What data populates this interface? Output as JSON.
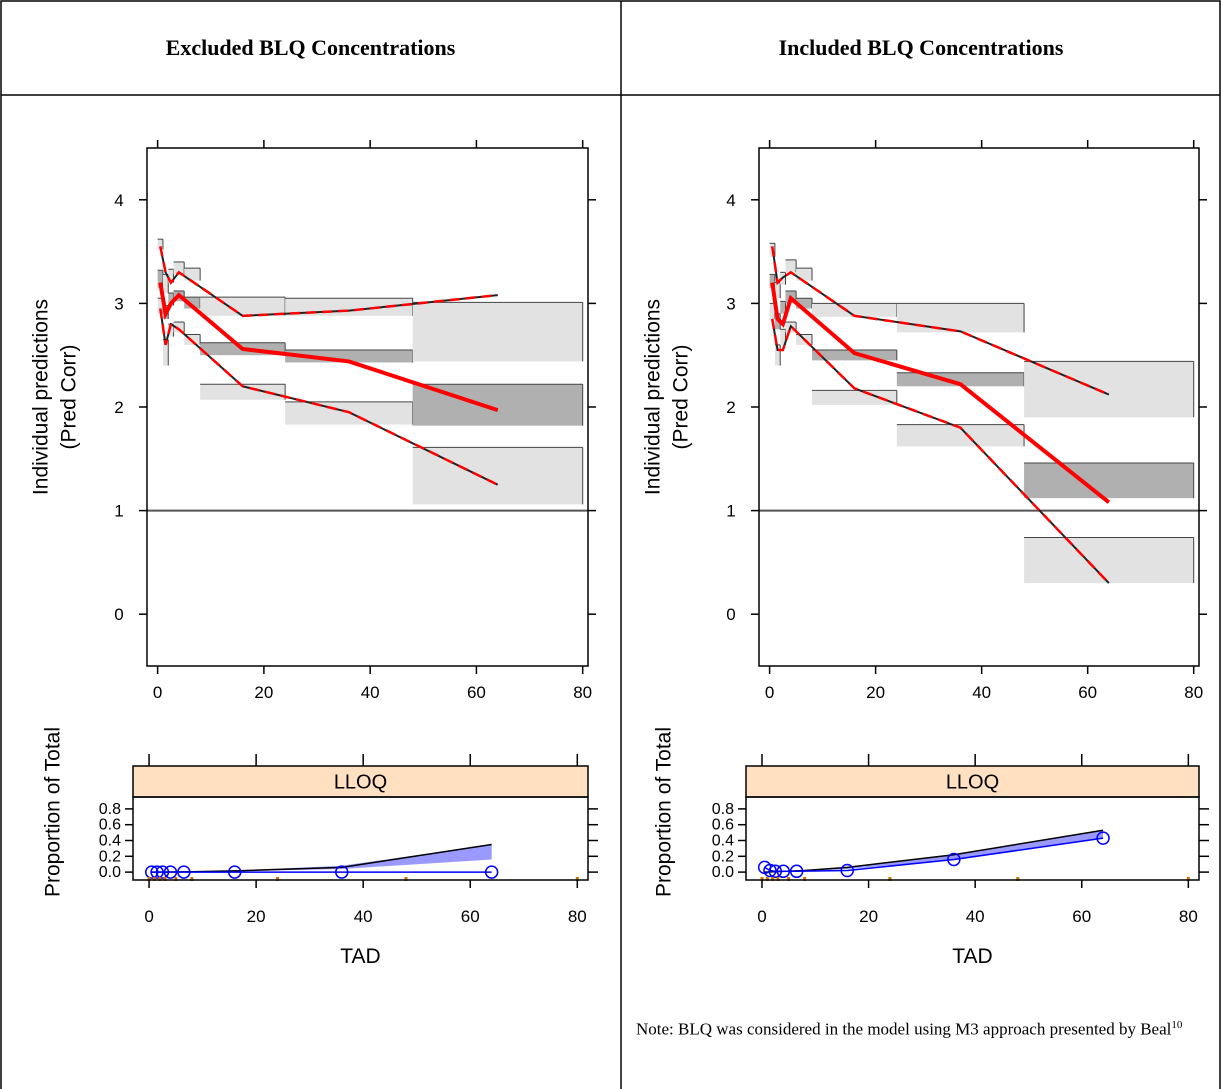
{
  "headers": {
    "left": "Excluded BLQ Concentrations",
    "right": "Included BLQ Concentrations"
  },
  "note": {
    "text": "Note: BLQ was considered in the model using M3 approach presented by Beal",
    "ref": "10"
  },
  "colors": {
    "observed": "#ff0000",
    "pi_dark": "#b0b0b0",
    "pi_light": "#e2e2e2",
    "sim_band": "#9999ff",
    "obs_prop": "#0000ff",
    "strip": "#ffe0c0",
    "tick_mark": "#d07000"
  },
  "chart_data": [
    {
      "panel": "Excluded BLQ Concentrations",
      "type": "line",
      "ylabel": [
        "Individual predictions",
        "(Pred Corr)"
      ],
      "xlim": [
        -2,
        81
      ],
      "ylim": [
        -0.5,
        4.5
      ],
      "xticks": [
        0,
        20,
        40,
        60,
        80
      ],
      "yticks": [
        0,
        1,
        2,
        3,
        4
      ],
      "reference_line": 1,
      "obs_median": {
        "x": [
          0.5,
          1.5,
          2.5,
          4,
          16,
          36,
          64
        ],
        "y": [
          3.2,
          2.9,
          3.0,
          3.08,
          2.56,
          2.44,
          1.97
        ]
      },
      "obs_upper": {
        "x": [
          0.5,
          1.5,
          2.5,
          4,
          16,
          36,
          64
        ],
        "y": [
          3.55,
          3.3,
          3.2,
          3.3,
          2.88,
          2.93,
          3.08
        ]
      },
      "obs_lower": {
        "x": [
          0.5,
          1.5,
          2.5,
          4,
          16,
          36,
          64
        ],
        "y": [
          2.95,
          2.6,
          2.8,
          2.75,
          2.2,
          1.95,
          1.25
        ]
      },
      "pred_intervals": [
        {
          "bin": [
            0,
            1
          ],
          "bands": [
            [
              3.52,
              3.62,
              "light"
            ],
            [
              3.15,
              3.32,
              "dark"
            ],
            [
              2.9,
              3.05,
              "light"
            ]
          ]
        },
        {
          "bin": [
            1,
            2
          ],
          "bands": [
            [
              3.1,
              3.28,
              "light"
            ],
            [
              2.85,
              2.98,
              "dark"
            ],
            [
              2.4,
              2.65,
              "light"
            ]
          ]
        },
        {
          "bin": [
            2,
            3
          ],
          "bands": [
            [
              3.2,
              3.33,
              "light"
            ],
            [
              2.98,
              3.1,
              "dark"
            ],
            [
              2.68,
              2.8,
              "light"
            ]
          ]
        },
        {
          "bin": [
            3,
            5
          ],
          "bands": [
            [
              3.28,
              3.4,
              "light"
            ],
            [
              3.02,
              3.12,
              "dark"
            ],
            [
              2.72,
              2.82,
              "light"
            ]
          ]
        },
        {
          "bin": [
            5,
            8
          ],
          "bands": [
            [
              3.22,
              3.34,
              "light"
            ],
            [
              2.95,
              3.06,
              "dark"
            ],
            [
              2.6,
              2.7,
              "light"
            ]
          ]
        },
        {
          "bin": [
            8,
            24
          ],
          "bands": [
            [
              2.88,
              3.06,
              "light"
            ],
            [
              2.5,
              2.62,
              "dark"
            ],
            [
              2.07,
              2.22,
              "light"
            ]
          ]
        },
        {
          "bin": [
            24,
            48
          ],
          "bands": [
            [
              2.88,
              3.05,
              "light"
            ],
            [
              2.43,
              2.55,
              "dark"
            ],
            [
              1.83,
              2.05,
              "light"
            ]
          ]
        },
        {
          "bin": [
            48,
            80
          ],
          "bands": [
            [
              2.44,
              3.01,
              "light"
            ],
            [
              1.82,
              2.22,
              "dark"
            ],
            [
              1.06,
              1.61,
              "light"
            ]
          ]
        }
      ],
      "blq": {
        "strip_label": "LLOQ",
        "xlabel": "TAD",
        "ylabel": "Proportion of Total",
        "xlim": [
          -3,
          82
        ],
        "ylim": [
          -0.1,
          0.9
        ],
        "xticks": [
          0,
          20,
          40,
          60,
          80
        ],
        "yticks": [
          0.0,
          0.2,
          0.4,
          0.6,
          0.8
        ],
        "ytick_labels": [
          "0.0",
          "0.2",
          "0.4",
          "0.6",
          "0.8"
        ],
        "observed": {
          "x": [
            0.5,
            1.5,
            2.5,
            4,
            6.5,
            16,
            36,
            64
          ],
          "y": [
            0,
            0,
            0,
            0,
            0,
            0,
            0,
            0
          ]
        },
        "sim_upper": {
          "x": [
            0.5,
            8,
            16,
            36,
            64
          ],
          "y": [
            0,
            0.01,
            0.02,
            0.08,
            0.35
          ]
        },
        "sim_lower": {
          "x": [
            0.5,
            8,
            16,
            36,
            64
          ],
          "y": [
            0,
            0,
            0.01,
            0.04,
            0.16
          ]
        },
        "sim_median": {
          "x": [
            0.5,
            8,
            16,
            36,
            64
          ],
          "y": [
            0,
            0.005,
            0.015,
            0.06,
            0.35
          ]
        },
        "bin_marks": [
          0,
          1,
          2,
          3,
          5,
          8,
          24,
          48,
          80
        ]
      }
    },
    {
      "panel": "Included BLQ Concentrations",
      "type": "line",
      "ylabel": [
        "Individual predictions",
        "(Pred Corr)"
      ],
      "xlim": [
        -2,
        81
      ],
      "ylim": [
        -0.5,
        4.5
      ],
      "xticks": [
        0,
        20,
        40,
        60,
        80
      ],
      "yticks": [
        0,
        1,
        2,
        3,
        4
      ],
      "reference_line": 1,
      "obs_median": {
        "x": [
          0.5,
          1.5,
          2.5,
          4,
          16,
          36,
          64
        ],
        "y": [
          3.2,
          2.85,
          2.8,
          3.05,
          2.52,
          2.22,
          1.08
        ]
      },
      "obs_upper": {
        "x": [
          0.5,
          1.5,
          2.5,
          4,
          16,
          36,
          64
        ],
        "y": [
          3.55,
          3.2,
          3.25,
          3.3,
          2.88,
          2.73,
          2.12
        ]
      },
      "obs_lower": {
        "x": [
          0.5,
          1.5,
          2.5,
          4,
          16,
          36,
          64
        ],
        "y": [
          2.85,
          2.55,
          2.55,
          2.78,
          2.18,
          1.8,
          0.3
        ]
      },
      "pred_intervals": [
        {
          "bin": [
            0,
            1
          ],
          "bands": [
            [
              3.45,
              3.58,
              "light"
            ],
            [
              3.15,
              3.28,
              "dark"
            ],
            [
              2.85,
              3.0,
              "light"
            ]
          ]
        },
        {
          "bin": [
            1,
            2
          ],
          "bands": [
            [
              3.05,
              3.2,
              "light"
            ],
            [
              2.75,
              2.9,
              "dark"
            ],
            [
              2.4,
              2.6,
              "light"
            ]
          ]
        },
        {
          "bin": [
            2,
            3
          ],
          "bands": [
            [
              3.18,
              3.3,
              "light"
            ],
            [
              2.9,
              3.02,
              "dark"
            ],
            [
              2.6,
              2.75,
              "light"
            ]
          ]
        },
        {
          "bin": [
            3,
            5
          ],
          "bands": [
            [
              3.3,
              3.42,
              "light"
            ],
            [
              3.0,
              3.12,
              "dark"
            ],
            [
              2.72,
              2.82,
              "light"
            ]
          ]
        },
        {
          "bin": [
            5,
            8
          ],
          "bands": [
            [
              3.22,
              3.34,
              "light"
            ],
            [
              2.95,
              3.05,
              "dark"
            ],
            [
              2.6,
              2.7,
              "light"
            ]
          ]
        },
        {
          "bin": [
            8,
            24
          ],
          "bands": [
            [
              2.87,
              3.0,
              "light"
            ],
            [
              2.45,
              2.55,
              "dark"
            ],
            [
              2.02,
              2.16,
              "light"
            ]
          ]
        },
        {
          "bin": [
            24,
            48
          ],
          "bands": [
            [
              2.72,
              3.0,
              "light"
            ],
            [
              2.2,
              2.33,
              "dark"
            ],
            [
              1.62,
              1.83,
              "light"
            ]
          ]
        },
        {
          "bin": [
            48,
            80
          ],
          "bands": [
            [
              1.9,
              2.44,
              "light"
            ],
            [
              1.12,
              1.46,
              "dark"
            ],
            [
              0.3,
              0.74,
              "light"
            ]
          ]
        }
      ],
      "blq": {
        "strip_label": "LLOQ",
        "xlabel": "TAD",
        "ylabel": "Proportion of Total",
        "xlim": [
          -3,
          82
        ],
        "ylim": [
          -0.1,
          0.9
        ],
        "xticks": [
          0,
          20,
          40,
          60,
          80
        ],
        "yticks": [
          0.0,
          0.2,
          0.4,
          0.6,
          0.8
        ],
        "ytick_labels": [
          "0.0",
          "0.2",
          "0.4",
          "0.6",
          "0.8"
        ],
        "observed": {
          "x": [
            0.5,
            1.5,
            2.5,
            4,
            6.5,
            16,
            36,
            64
          ],
          "y": [
            0.06,
            0.02,
            0.01,
            0.01,
            0.01,
            0.02,
            0.16,
            0.43
          ]
        },
        "sim_upper": {
          "x": [
            0.5,
            8,
            16,
            36,
            64
          ],
          "y": [
            0,
            0.02,
            0.06,
            0.22,
            0.53
          ]
        },
        "sim_lower": {
          "x": [
            0.5,
            8,
            16,
            36,
            64
          ],
          "y": [
            0,
            0.01,
            0.04,
            0.15,
            0.42
          ]
        },
        "sim_median": {
          "x": [
            0.5,
            8,
            16,
            36,
            64
          ],
          "y": [
            0,
            0.02,
            0.06,
            0.22,
            0.53
          ]
        },
        "bin_marks": [
          0,
          1,
          2,
          3,
          5,
          8,
          24,
          48,
          80
        ]
      }
    }
  ]
}
